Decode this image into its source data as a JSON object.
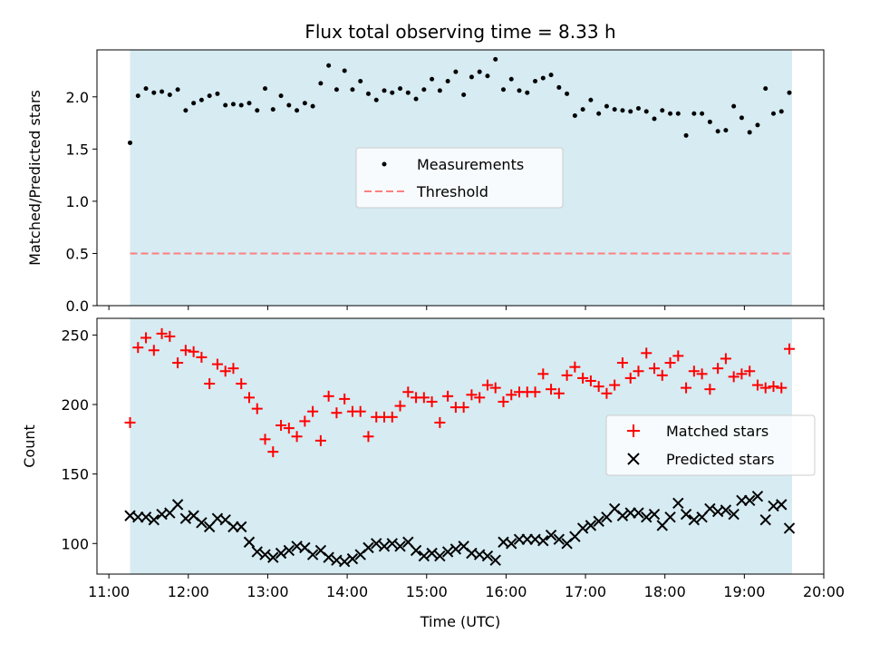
{
  "chart_data": [
    {
      "type": "scatter",
      "title": "Flux total observing time = 8.33 h",
      "ylabel": "Matched/Predicted stars",
      "xlabel": "",
      "xlim": [
        "10:51",
        "20:00"
      ],
      "ylim": [
        0,
        2.45
      ],
      "yticks": [
        0.0,
        0.5,
        1.0,
        1.5,
        2.0
      ],
      "ytick_labels": [
        "0.0",
        "0.5",
        "1.0",
        "1.5",
        "2.0"
      ],
      "shaded_span": [
        "11:16",
        "19:36"
      ],
      "shade_color": "#add8e6",
      "legend": {
        "placement": "center",
        "entries": [
          "Measurements",
          "Threshold"
        ]
      },
      "series": [
        {
          "name": "Measurements",
          "marker": "dot",
          "color": "#000000",
          "x": [
            "11:16",
            "11:22",
            "11:28",
            "11:34",
            "11:40",
            "11:46",
            "11:52",
            "11:58",
            "12:04",
            "12:10",
            "12:16",
            "12:22",
            "12:28",
            "12:34",
            "12:40",
            "12:46",
            "12:52",
            "12:58",
            "13:04",
            "13:10",
            "13:16",
            "13:22",
            "13:28",
            "13:34",
            "13:40",
            "13:46",
            "13:52",
            "13:58",
            "14:04",
            "14:10",
            "14:16",
            "14:22",
            "14:28",
            "14:34",
            "14:40",
            "14:46",
            "14:52",
            "14:58",
            "15:04",
            "15:10",
            "15:16",
            "15:22",
            "15:28",
            "15:34",
            "15:40",
            "15:46",
            "15:52",
            "15:58",
            "16:04",
            "16:10",
            "16:16",
            "16:22",
            "16:28",
            "16:34",
            "16:40",
            "16:46",
            "16:52",
            "16:58",
            "17:04",
            "17:10",
            "17:16",
            "17:22",
            "17:28",
            "17:34",
            "17:40",
            "17:46",
            "17:52",
            "17:58",
            "18:04",
            "18:10",
            "18:16",
            "18:22",
            "18:28",
            "18:34",
            "18:40",
            "18:46",
            "18:52",
            "18:58",
            "19:04",
            "19:10",
            "19:16",
            "19:22",
            "19:28",
            "19:34"
          ],
          "values": [
            1.56,
            2.01,
            2.08,
            2.04,
            2.05,
            2.02,
            2.07,
            1.87,
            1.94,
            1.97,
            2.01,
            2.03,
            1.92,
            1.93,
            1.92,
            1.94,
            1.87,
            2.08,
            1.88,
            2.01,
            1.92,
            1.87,
            1.94,
            1.91,
            2.13,
            2.3,
            2.07,
            2.25,
            2.07,
            2.15,
            2.03,
            1.97,
            2.06,
            2.04,
            2.08,
            2.04,
            1.98,
            2.07,
            2.17,
            2.06,
            2.15,
            2.24,
            2.02,
            2.19,
            2.24,
            2.2,
            2.36,
            2.07,
            2.17,
            2.06,
            2.04,
            2.15,
            2.18,
            2.21,
            2.09,
            2.03,
            1.82,
            1.88,
            1.97,
            1.84,
            1.91,
            1.88,
            1.87,
            1.86,
            1.89,
            1.86,
            1.79,
            1.87,
            1.84,
            1.84,
            1.63,
            1.84,
            1.84,
            1.76,
            1.67,
            1.68,
            1.91,
            1.8,
            1.66,
            1.73,
            2.08,
            1.84,
            1.86,
            2.04
          ]
        },
        {
          "name": "Threshold",
          "marker": "dashed-line",
          "color": "#ff7f7f",
          "x": [
            "11:16",
            "19:36"
          ],
          "values": [
            0.5,
            0.5
          ]
        }
      ]
    },
    {
      "type": "scatter",
      "title": "",
      "xlabel": "Time (UTC)",
      "ylabel": "Count",
      "xlim": [
        "10:51",
        "20:00"
      ],
      "ylim": [
        78,
        262
      ],
      "xticks": [
        "11:00",
        "12:00",
        "13:00",
        "14:00",
        "15:00",
        "16:00",
        "17:00",
        "18:00",
        "19:00",
        "20:00"
      ],
      "yticks": [
        100,
        150,
        200,
        250
      ],
      "shaded_span": [
        "11:16",
        "19:36"
      ],
      "shade_color": "#add8e6",
      "legend": {
        "placement": "right",
        "entries": [
          "Matched stars",
          "Predicted stars"
        ]
      },
      "series": [
        {
          "name": "Matched stars",
          "marker": "plus",
          "color": "#ff0000",
          "x": [
            "11:16",
            "11:22",
            "11:28",
            "11:34",
            "11:40",
            "11:46",
            "11:52",
            "11:58",
            "12:04",
            "12:10",
            "12:16",
            "12:22",
            "12:28",
            "12:34",
            "12:40",
            "12:46",
            "12:52",
            "12:58",
            "13:04",
            "13:10",
            "13:16",
            "13:22",
            "13:28",
            "13:34",
            "13:40",
            "13:46",
            "13:52",
            "13:58",
            "14:04",
            "14:10",
            "14:16",
            "14:22",
            "14:28",
            "14:34",
            "14:40",
            "14:46",
            "14:52",
            "14:58",
            "15:04",
            "15:10",
            "15:16",
            "15:22",
            "15:28",
            "15:34",
            "15:40",
            "15:46",
            "15:52",
            "15:58",
            "16:04",
            "16:10",
            "16:16",
            "16:22",
            "16:28",
            "16:34",
            "16:40",
            "16:46",
            "16:52",
            "16:58",
            "17:04",
            "17:10",
            "17:16",
            "17:22",
            "17:28",
            "17:34",
            "17:40",
            "17:46",
            "17:52",
            "17:58",
            "18:04",
            "18:10",
            "18:16",
            "18:22",
            "18:28",
            "18:34",
            "18:40",
            "18:46",
            "18:52",
            "18:58",
            "19:04",
            "19:10",
            "19:16",
            "19:22",
            "19:28",
            "19:34"
          ],
          "values": [
            187,
            241,
            248,
            239,
            251,
            249,
            230,
            239,
            238,
            234,
            215,
            229,
            224,
            226,
            215,
            205,
            197,
            175,
            166,
            185,
            183,
            177,
            188,
            195,
            174,
            206,
            194,
            204,
            195,
            195,
            177,
            191,
            191,
            191,
            199,
            209,
            205,
            205,
            202,
            187,
            206,
            198,
            198,
            207,
            205,
            214,
            212,
            202,
            207,
            209,
            209,
            209,
            222,
            211,
            208,
            221,
            227,
            219,
            217,
            213,
            208,
            214,
            230,
            219,
            224,
            237,
            226,
            221,
            230,
            235,
            212,
            224,
            222,
            211,
            226,
            233,
            220,
            222,
            224,
            214,
            212,
            213,
            212,
            240
          ]
        },
        {
          "name": "Predicted stars",
          "marker": "x",
          "color": "#000000",
          "x": [
            "11:16",
            "11:22",
            "11:28",
            "11:34",
            "11:40",
            "11:46",
            "11:52",
            "11:58",
            "12:04",
            "12:10",
            "12:16",
            "12:22",
            "12:28",
            "12:34",
            "12:40",
            "12:46",
            "12:52",
            "12:58",
            "13:04",
            "13:10",
            "13:16",
            "13:22",
            "13:28",
            "13:34",
            "13:40",
            "13:46",
            "13:52",
            "13:58",
            "14:04",
            "14:10",
            "14:16",
            "14:22",
            "14:28",
            "14:34",
            "14:40",
            "14:46",
            "14:52",
            "14:58",
            "15:04",
            "15:10",
            "15:16",
            "15:22",
            "15:28",
            "15:34",
            "15:40",
            "15:46",
            "15:52",
            "15:58",
            "16:04",
            "16:10",
            "16:16",
            "16:22",
            "16:28",
            "16:34",
            "16:40",
            "16:46",
            "16:52",
            "16:58",
            "17:04",
            "17:10",
            "17:16",
            "17:22",
            "17:28",
            "17:34",
            "17:40",
            "17:46",
            "17:52",
            "17:58",
            "18:04",
            "18:10",
            "18:16",
            "18:22",
            "18:28",
            "18:34",
            "18:40",
            "18:46",
            "18:52",
            "18:58",
            "19:04",
            "19:10",
            "19:16",
            "19:22",
            "19:28",
            "19:34"
          ],
          "values": [
            120,
            119,
            119,
            117,
            121,
            122,
            128,
            118,
            120,
            115,
            112,
            118,
            117,
            112,
            112,
            101,
            94,
            92,
            90,
            93,
            95,
            98,
            97,
            92,
            95,
            90,
            88,
            87,
            89,
            92,
            97,
            100,
            98,
            100,
            98,
            101,
            95,
            91,
            93,
            91,
            94,
            96,
            98,
            93,
            92,
            91,
            88,
            101,
            100,
            103,
            103,
            103,
            102,
            106,
            103,
            100,
            105,
            111,
            113,
            116,
            119,
            125,
            120,
            122,
            122,
            119,
            121,
            113,
            119,
            129,
            121,
            117,
            119,
            125,
            123,
            124,
            121,
            131,
            131,
            134,
            117,
            127,
            128,
            111
          ]
        }
      ]
    }
  ]
}
